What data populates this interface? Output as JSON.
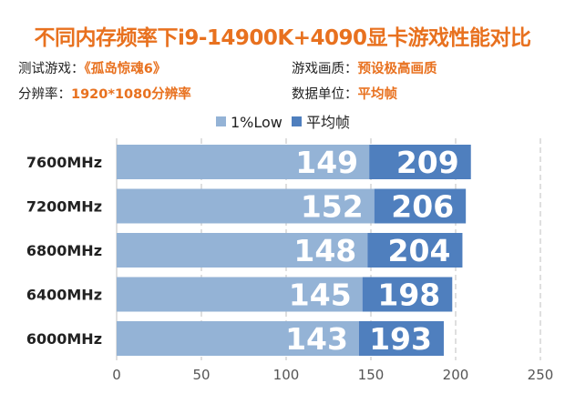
{
  "header": {
    "title": "不同内存频率下i9-14900K+4090显卡游戏性能对比",
    "meta": [
      {
        "key": "测试游戏：",
        "value": "《孤岛惊魂6》"
      },
      {
        "key": "游戏画质：",
        "value": "预设极高画质"
      },
      {
        "key": "分辨率：",
        "value": "1920*1080分辨率"
      },
      {
        "key": "数据单位：",
        "value": "平均帧"
      }
    ]
  },
  "colors": {
    "accent": "#e8711f",
    "low_bar": "#94b3d6",
    "avg_bar": "#4f7fbe",
    "grid": "#bfbfbf",
    "axis_text": "#555555",
    "category_text": "#222222"
  },
  "chart_data": {
    "type": "bar",
    "orientation": "horizontal",
    "title": "不同内存频率下i9-14900K+4090显卡游戏性能对比",
    "categories": [
      "7600MHz",
      "7200MHz",
      "6800MHz",
      "6400MHz",
      "6000MHz"
    ],
    "series": [
      {
        "name": "1%Low",
        "values": [
          149,
          152,
          148,
          145,
          143
        ]
      },
      {
        "name": "平均帧",
        "values": [
          209,
          206,
          204,
          198,
          193
        ]
      }
    ],
    "xlim": [
      0,
      250
    ],
    "xticks": [
      0,
      50,
      100,
      150,
      200,
      250
    ],
    "grid": "vertical dashed",
    "legend": "top-center",
    "xlabel": "",
    "ylabel": ""
  }
}
